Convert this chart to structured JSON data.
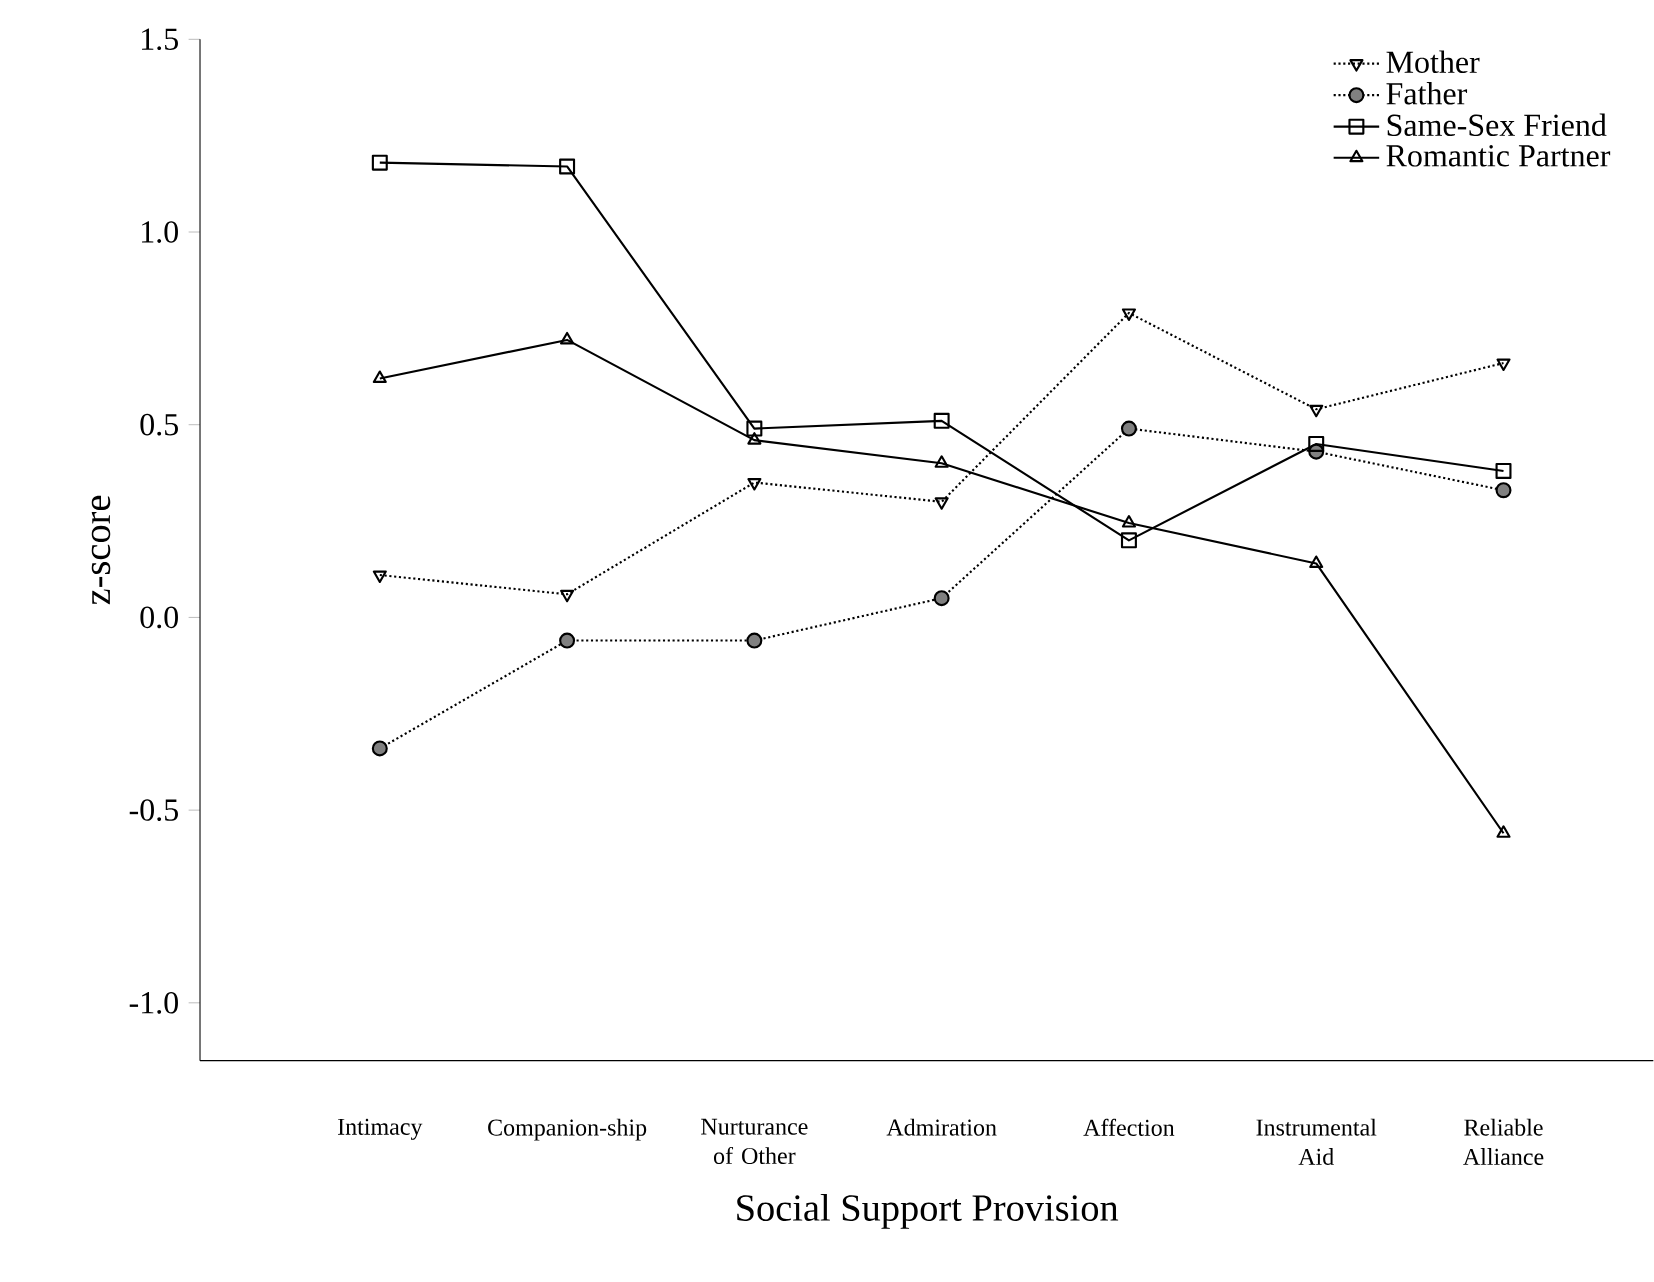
{
  "chart_data": {
    "type": "line",
    "xlabel": "Social Support Provision",
    "ylabel": "z-score",
    "categories": [
      "Intimacy",
      "Companion-ship",
      "Nurturance of Other",
      "Admiration",
      "Affection",
      "Instrumental Aid",
      "Reliable Alliance"
    ],
    "ylim": [
      -1.15,
      1.5
    ],
    "yticks": [
      {
        "value": -1.0,
        "label": "-1.0"
      },
      {
        "value": -0.5,
        "label": "-0.5"
      },
      {
        "value": 0.0,
        "label": "0.0"
      },
      {
        "value": 0.5,
        "label": "0.5"
      },
      {
        "value": 1.0,
        "label": "1.0"
      },
      {
        "value": 1.5,
        "label": "1.5"
      }
    ],
    "legend": "top right",
    "grid": false,
    "series": [
      {
        "name": "Mother",
        "color": "#000000",
        "marker": "triangle",
        "line_style": "dotted",
        "values": [
          0.11,
          0.06,
          0.35,
          0.3,
          0.79,
          0.54,
          0.66
        ]
      },
      {
        "name": "Father",
        "color": "#000000",
        "marker": "circle",
        "line_style": "dotted",
        "values": [
          -0.34,
          -0.06,
          -0.06,
          0.05,
          0.49,
          0.43,
          0.33
        ]
      },
      {
        "name": "Same-Sex Friend",
        "color": "#000000",
        "marker": "square",
        "line_style": "solid",
        "values": [
          1.18,
          1.17,
          0.49,
          0.51,
          0.2,
          0.45,
          0.38
        ]
      },
      {
        "name": "Romantic Partner",
        "color": "#000000",
        "marker": "triangle",
        "line_style": "solid",
        "values": [
          0.62,
          0.72,
          0.46,
          0.4,
          0.245,
          0.14,
          -0.56
        ]
      }
    ]
  }
}
